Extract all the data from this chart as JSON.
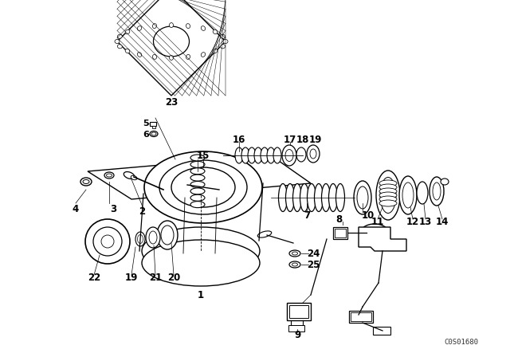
{
  "background_color": "#ffffff",
  "fig_width": 6.4,
  "fig_height": 4.48,
  "dpi": 100,
  "watermark": "C0S01680",
  "line_color": "#000000",
  "label_fontsize": 7.5
}
